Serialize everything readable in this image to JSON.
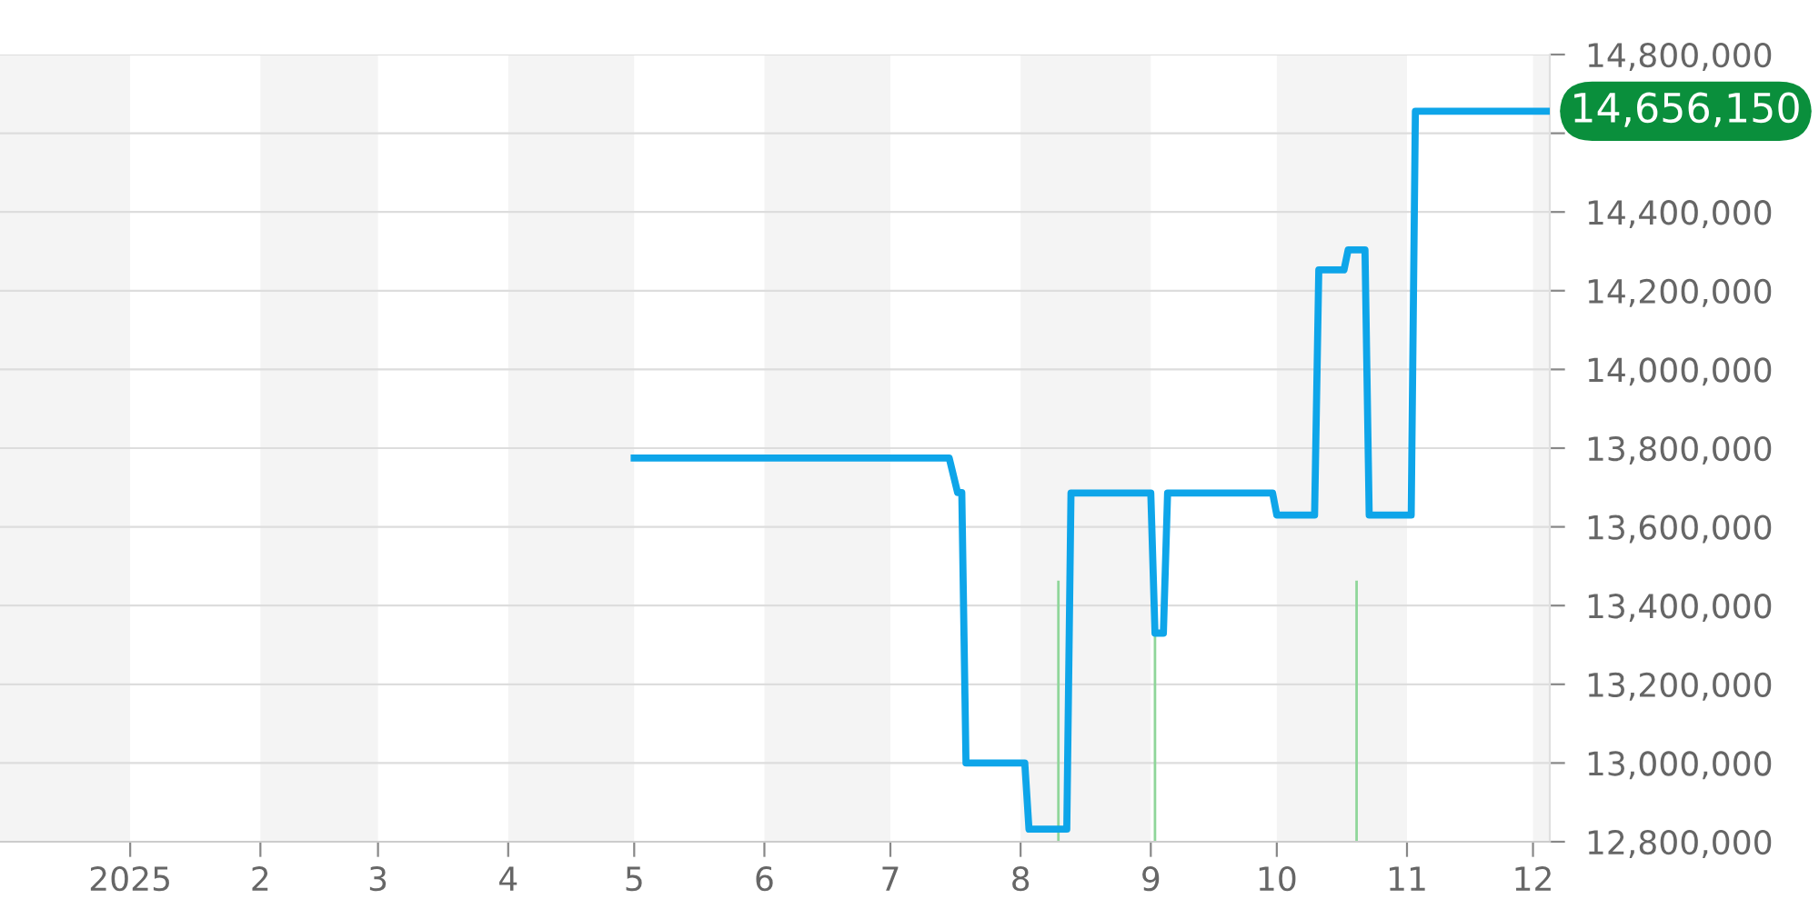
{
  "chart_data": {
    "type": "line",
    "x": [
      "2025-05-01",
      "2025-07-15",
      "2025-07-17",
      "2025-07-18",
      "2025-07-19",
      "2025-08-02",
      "2025-08-03",
      "2025-08-12",
      "2025-08-13",
      "2025-09-01",
      "2025-09-02",
      "2025-09-04",
      "2025-09-05",
      "2025-09-30",
      "2025-10-01",
      "2025-10-10",
      "2025-10-11",
      "2025-10-17",
      "2025-10-18",
      "2025-10-22",
      "2025-10-23",
      "2025-11-02",
      "2025-11-03",
      "2025-12-05"
    ],
    "series": [
      {
        "color": "#0ea5e9",
        "values": [
          13775000,
          13775000,
          13687000,
          13687000,
          13000000,
          13000000,
          12832000,
          12832000,
          13686000,
          13686000,
          13330000,
          13330000,
          13686000,
          13686000,
          13630000,
          13630000,
          14253000,
          14253000,
          14304000,
          14304000,
          13630000,
          13630000,
          14656150,
          14656150
        ]
      }
    ],
    "xlim": [
      "2024-12-01",
      "2025-12-05"
    ],
    "xticks": [
      {
        "value": "2025-01-01",
        "label": "2025"
      },
      {
        "value": "2025-02-01",
        "label": "2"
      },
      {
        "value": "2025-03-01",
        "label": "3"
      },
      {
        "value": "2025-04-01",
        "label": "4"
      },
      {
        "value": "2025-05-01",
        "label": "5"
      },
      {
        "value": "2025-06-01",
        "label": "6"
      },
      {
        "value": "2025-07-01",
        "label": "7"
      },
      {
        "value": "2025-08-01",
        "label": "8"
      },
      {
        "value": "2025-09-01",
        "label": "9"
      },
      {
        "value": "2025-10-01",
        "label": "10"
      },
      {
        "value": "2025-11-01",
        "label": "11"
      },
      {
        "value": "2025-12-01",
        "label": "12"
      }
    ],
    "ylim": [
      12800000,
      14800000
    ],
    "yticks": [
      {
        "value": 12800000,
        "label": "12,800,000"
      },
      {
        "value": 13000000,
        "label": "13,000,000"
      },
      {
        "value": 13200000,
        "label": "13,200,000"
      },
      {
        "value": 13400000,
        "label": "13,400,000"
      },
      {
        "value": 13600000,
        "label": "13,600,000"
      },
      {
        "value": 13800000,
        "label": "13,800,000"
      },
      {
        "value": 14000000,
        "label": "14,000,000"
      },
      {
        "value": 14200000,
        "label": "14,200,000"
      },
      {
        "value": 14400000,
        "label": "14,400,000"
      },
      {
        "value": 14600000,
        "label": null
      },
      {
        "value": 14800000,
        "label": "14,800,000"
      }
    ],
    "grid": "y",
    "marker": "none",
    "line_style": "solid",
    "bands": [
      {
        "axis": "x",
        "from": "2024-12-01",
        "to": "2025-01-01",
        "color": "#f4f4f4"
      },
      {
        "axis": "x",
        "from": "2025-02-01",
        "to": "2025-03-01",
        "color": "#f4f4f4"
      },
      {
        "axis": "x",
        "from": "2025-04-01",
        "to": "2025-05-01",
        "color": "#f4f4f4"
      },
      {
        "axis": "x",
        "from": "2025-06-01",
        "to": "2025-07-01",
        "color": "#f4f4f4"
      },
      {
        "axis": "x",
        "from": "2025-08-01",
        "to": "2025-09-01",
        "color": "#f4f4f4"
      },
      {
        "axis": "x",
        "from": "2025-10-01",
        "to": "2025-11-01",
        "color": "#f4f4f4"
      },
      {
        "axis": "x",
        "from": "2025-12-01",
        "to": "2025-12-05",
        "color": "#f4f4f4"
      }
    ],
    "ref_lines": [
      {
        "axis": "x",
        "value": "2025-08-10",
        "color": "#8fd69a"
      },
      {
        "axis": "x",
        "value": "2025-09-02",
        "color": "#8fd69a"
      },
      {
        "axis": "x",
        "value": "2025-10-20",
        "color": "#8fd69a"
      }
    ],
    "annotations": [
      {
        "text": "14,656,150",
        "x": "2025-12-05",
        "y": 14656150
      }
    ]
  }
}
